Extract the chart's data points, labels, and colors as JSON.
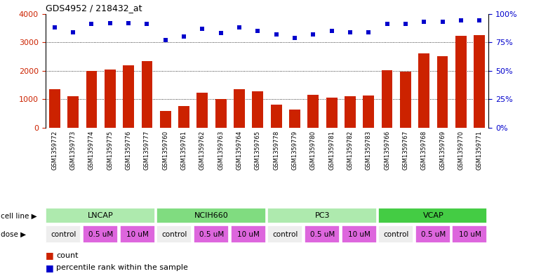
{
  "title": "GDS4952 / 218432_at",
  "samples": [
    "GSM1359772",
    "GSM1359773",
    "GSM1359774",
    "GSM1359775",
    "GSM1359776",
    "GSM1359777",
    "GSM1359760",
    "GSM1359761",
    "GSM1359762",
    "GSM1359763",
    "GSM1359764",
    "GSM1359765",
    "GSM1359778",
    "GSM1359779",
    "GSM1359780",
    "GSM1359781",
    "GSM1359782",
    "GSM1359783",
    "GSM1359766",
    "GSM1359767",
    "GSM1359768",
    "GSM1359769",
    "GSM1359770",
    "GSM1359771"
  ],
  "bar_values": [
    1350,
    1100,
    2000,
    2050,
    2200,
    2350,
    580,
    760,
    1220,
    1020,
    1360,
    1290,
    820,
    640,
    1150,
    1060,
    1120,
    1130,
    2020,
    1970,
    2620,
    2520,
    3230,
    3250
  ],
  "percentile_values": [
    88,
    84,
    91,
    92,
    92,
    91,
    77,
    80,
    87,
    83,
    88,
    85,
    82,
    79,
    82,
    85,
    84,
    84,
    91,
    91,
    93,
    93,
    94,
    94
  ],
  "cell_lines": [
    {
      "name": "LNCAP",
      "start": 0,
      "end": 6,
      "color": "#aeeaae"
    },
    {
      "name": "NCIH660",
      "start": 6,
      "end": 12,
      "color": "#80dc80"
    },
    {
      "name": "PC3",
      "start": 12,
      "end": 18,
      "color": "#aeeaae"
    },
    {
      "name": "VCAP",
      "start": 18,
      "end": 24,
      "color": "#44cc44"
    }
  ],
  "dose_groups": [
    {
      "name": "control",
      "start": 0,
      "end": 2,
      "color": "#eeeeee"
    },
    {
      "name": "0.5 uM",
      "start": 2,
      "end": 4,
      "color": "#dd66dd"
    },
    {
      "name": "10 uM",
      "start": 4,
      "end": 6,
      "color": "#dd66dd"
    },
    {
      "name": "control",
      "start": 6,
      "end": 8,
      "color": "#eeeeee"
    },
    {
      "name": "0.5 uM",
      "start": 8,
      "end": 10,
      "color": "#dd66dd"
    },
    {
      "name": "10 uM",
      "start": 10,
      "end": 12,
      "color": "#dd66dd"
    },
    {
      "name": "control",
      "start": 12,
      "end": 14,
      "color": "#eeeeee"
    },
    {
      "name": "0.5 uM",
      "start": 14,
      "end": 16,
      "color": "#dd66dd"
    },
    {
      "name": "10 uM",
      "start": 16,
      "end": 18,
      "color": "#dd66dd"
    },
    {
      "name": "control",
      "start": 18,
      "end": 20,
      "color": "#eeeeee"
    },
    {
      "name": "0.5 uM",
      "start": 20,
      "end": 22,
      "color": "#dd66dd"
    },
    {
      "name": "10 uM",
      "start": 22,
      "end": 24,
      "color": "#dd66dd"
    }
  ],
  "bar_color": "#cc2200",
  "dot_color": "#0000cc",
  "ylim_left": [
    0,
    4000
  ],
  "ylim_right": [
    0,
    100
  ],
  "yticks_left": [
    0,
    1000,
    2000,
    3000,
    4000
  ],
  "yticks_right": [
    0,
    25,
    50,
    75,
    100
  ],
  "ytick_labels_right": [
    "0%",
    "25%",
    "50%",
    "75%",
    "100%"
  ],
  "grid_values": [
    1000,
    2000,
    3000
  ],
  "xtick_bg_color": "#cccccc",
  "fig_bg": "#ffffff",
  "cell_line_label": "cell line ▶",
  "dose_label": "dose ▶",
  "legend_count": "count",
  "legend_pct": "percentile rank within the sample"
}
